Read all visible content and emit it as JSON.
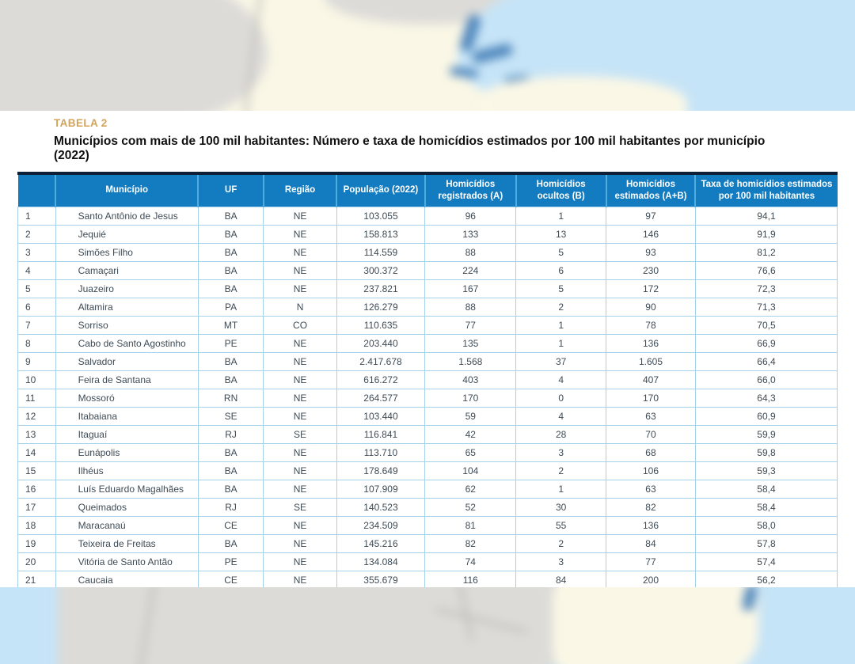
{
  "page": {
    "label": "TABELA 2",
    "title": "Municípios com mais de 100 mil habitantes: Número e taxa de homicídios estimados por 100 mil habitantes por município (2022)"
  },
  "table": {
    "columns": [
      "",
      "Município",
      "UF",
      "Região",
      "População (2022)",
      "Homicídios registrados (A)",
      "Homicídios ocultos (B)",
      "Homicídios estimados (A+B)",
      "Taxa de homicídios estimados por 100 mil habitantes"
    ],
    "rows": [
      [
        "1",
        "Santo Antônio de Jesus",
        "BA",
        "NE",
        "103.055",
        "96",
        "1",
        "97",
        "94,1"
      ],
      [
        "2",
        "Jequié",
        "BA",
        "NE",
        "158.813",
        "133",
        "13",
        "146",
        "91,9"
      ],
      [
        "3",
        "Simões Filho",
        "BA",
        "NE",
        "114.559",
        "88",
        "5",
        "93",
        "81,2"
      ],
      [
        "4",
        "Camaçari",
        "BA",
        "NE",
        "300.372",
        "224",
        "6",
        "230",
        "76,6"
      ],
      [
        "5",
        "Juazeiro",
        "BA",
        "NE",
        "237.821",
        "167",
        "5",
        "172",
        "72,3"
      ],
      [
        "6",
        "Altamira",
        "PA",
        "N",
        "126.279",
        "88",
        "2",
        "90",
        "71,3"
      ],
      [
        "7",
        "Sorriso",
        "MT",
        "CO",
        "110.635",
        "77",
        "1",
        "78",
        "70,5"
      ],
      [
        "8",
        "Cabo de Santo Agostinho",
        "PE",
        "NE",
        "203.440",
        "135",
        "1",
        "136",
        "66,9"
      ],
      [
        "9",
        "Salvador",
        "BA",
        "NE",
        "2.417.678",
        "1.568",
        "37",
        "1.605",
        "66,4"
      ],
      [
        "10",
        "Feira de Santana",
        "BA",
        "NE",
        "616.272",
        "403",
        "4",
        "407",
        "66,0"
      ],
      [
        "11",
        "Mossoró",
        "RN",
        "NE",
        "264.577",
        "170",
        "0",
        "170",
        "64,3"
      ],
      [
        "12",
        "Itabaiana",
        "SE",
        "NE",
        "103.440",
        "59",
        "4",
        "63",
        "60,9"
      ],
      [
        "13",
        "Itaguaí",
        "RJ",
        "SE",
        "116.841",
        "42",
        "28",
        "70",
        "59,9"
      ],
      [
        "14",
        "Eunápolis",
        "BA",
        "NE",
        "113.710",
        "65",
        "3",
        "68",
        "59,8"
      ],
      [
        "15",
        "Ilhéus",
        "BA",
        "NE",
        "178.649",
        "104",
        "2",
        "106",
        "59,3"
      ],
      [
        "16",
        "Luís Eduardo Magalhães",
        "BA",
        "NE",
        "107.909",
        "62",
        "1",
        "63",
        "58,4"
      ],
      [
        "17",
        "Queimados",
        "RJ",
        "SE",
        "140.523",
        "52",
        "30",
        "82",
        "58,4"
      ],
      [
        "18",
        "Maracanaú",
        "CE",
        "NE",
        "234.509",
        "81",
        "55",
        "136",
        "58,0"
      ],
      [
        "19",
        "Teixeira de Freitas",
        "BA",
        "NE",
        "145.216",
        "82",
        "2",
        "84",
        "57,8"
      ],
      [
        "20",
        "Vitória de Santo Antão",
        "PE",
        "NE",
        "134.084",
        "74",
        "3",
        "77",
        "57,4"
      ]
    ],
    "partial_row": [
      "21",
      "Caucaia",
      "CE",
      "NE",
      "355.679",
      "116",
      "84",
      "200",
      "56,2"
    ]
  },
  "colors": {
    "header_bg": "#137BBF",
    "header_divider": "#4FACDF",
    "table_top_border": "#0D2035",
    "cell_border": "#A5D2EA",
    "cell_text": "#3E4B55",
    "title": "#D2A358",
    "subtitle": "#101010",
    "page_bg": "#FFFFFF",
    "ocean": "#C6E4F7",
    "land_cream": "#FAF7E6",
    "land_gray": "#DCDBD8",
    "map_border": "#BDBBB5",
    "river": "#4E86BC"
  }
}
